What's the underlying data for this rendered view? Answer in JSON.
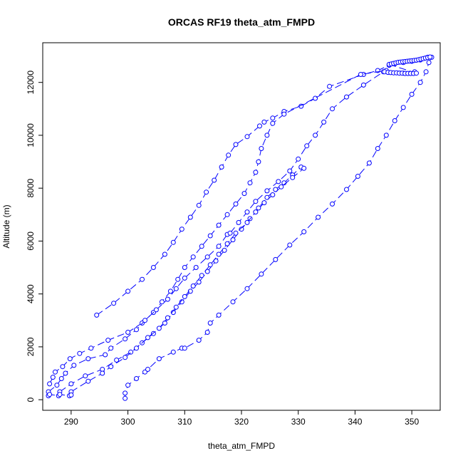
{
  "chart_data": {
    "type": "scatter",
    "title": "ORCAS RF19 theta_atm_FMPD",
    "xlabel": "theta_atm_FMPD",
    "ylabel": "Altitude (m)",
    "xlim": [
      285,
      355
    ],
    "ylim": [
      -400,
      13500
    ],
    "xticks": [
      290,
      300,
      310,
      320,
      330,
      340,
      350
    ],
    "yticks": [
      0,
      2000,
      4000,
      6000,
      8000,
      10000,
      12000
    ],
    "grid": false,
    "legend": "none",
    "color": "#0000ff",
    "line_style": "dashed",
    "marker": "open-circle",
    "series": [
      {
        "values": [
          [
            294.5,
            3200
          ],
          [
            297.5,
            3650
          ],
          [
            300.0,
            4100
          ],
          [
            302.5,
            4550
          ],
          [
            304.5,
            5000
          ],
          [
            306.5,
            5500
          ],
          [
            308.0,
            5950
          ],
          [
            309.5,
            6450
          ],
          [
            311.0,
            6900
          ],
          [
            312.5,
            7350
          ],
          [
            313.8,
            7850
          ],
          [
            315.2,
            8300
          ],
          [
            316.5,
            8800
          ],
          [
            317.7,
            9250
          ],
          [
            319.0,
            9650
          ],
          [
            321.0,
            9950
          ],
          [
            323.2,
            10350
          ],
          [
            324.0,
            10500
          ],
          [
            325.5,
            10650
          ],
          [
            327.5,
            10900
          ],
          [
            330.5,
            11100
          ],
          [
            333.0,
            11400
          ],
          [
            335.5,
            11850
          ],
          [
            341.5,
            12300
          ],
          [
            344.0,
            12450
          ],
          [
            346.0,
            12650
          ],
          [
            347.0,
            12700
          ],
          [
            348.5,
            12750
          ],
          [
            350.0,
            12800
          ],
          [
            351.5,
            12850
          ],
          [
            352.8,
            12950
          ]
        ]
      },
      {
        "values": [
          [
            286.2,
            600
          ],
          [
            286.8,
            850
          ],
          [
            287.2,
            1050
          ],
          [
            288.5,
            1250
          ],
          [
            289.8,
            1550
          ],
          [
            291.5,
            1750
          ],
          [
            293.5,
            1950
          ],
          [
            296.5,
            2250
          ],
          [
            300.0,
            2550
          ],
          [
            302.5,
            2900
          ],
          [
            304.5,
            3300
          ],
          [
            306.0,
            3700
          ],
          [
            307.5,
            4100
          ],
          [
            308.8,
            4550
          ],
          [
            310.0,
            5000
          ],
          [
            311.5,
            5400
          ],
          [
            313.0,
            5800
          ],
          [
            314.5,
            6200
          ],
          [
            316.0,
            6600
          ],
          [
            317.5,
            7000
          ],
          [
            319.0,
            7400
          ],
          [
            320.5,
            7800
          ],
          [
            321.5,
            8200
          ],
          [
            322.5,
            8600
          ],
          [
            323.0,
            9000
          ],
          [
            323.5,
            9500
          ],
          [
            324.5,
            10000
          ],
          [
            325.5,
            10450
          ],
          [
            327.5,
            10800
          ],
          [
            341.0,
            12300
          ],
          [
            345.5,
            12450
          ],
          [
            350.5,
            12400
          ]
        ]
      },
      {
        "values": [
          [
            286.0,
            300
          ],
          [
            287.5,
            550
          ],
          [
            288.3,
            800
          ],
          [
            289.0,
            1000
          ],
          [
            290.5,
            1300
          ],
          [
            293.0,
            1550
          ],
          [
            296.0,
            1700
          ],
          [
            297.0,
            1950
          ],
          [
            299.5,
            2300
          ],
          [
            301.5,
            2650
          ],
          [
            303.0,
            3000
          ],
          [
            305.0,
            3400
          ],
          [
            307.0,
            3800
          ],
          [
            308.5,
            4200
          ],
          [
            310.0,
            4600
          ],
          [
            312.0,
            5000
          ],
          [
            314.0,
            5400
          ],
          [
            316.0,
            5800
          ],
          [
            317.5,
            6250
          ],
          [
            318.0,
            6300
          ],
          [
            319.5,
            6700
          ],
          [
            321.0,
            7100
          ],
          [
            322.5,
            7500
          ],
          [
            324.5,
            7900
          ],
          [
            326.5,
            8250
          ],
          [
            328.5,
            8650
          ],
          [
            330.0,
            9100
          ],
          [
            331.5,
            9600
          ],
          [
            333.0,
            10000
          ],
          [
            334.5,
            10500
          ],
          [
            336.0,
            11000
          ],
          [
            338.5,
            11450
          ],
          [
            341.5,
            11900
          ],
          [
            345.0,
            12400
          ],
          [
            348.5,
            12350
          ]
        ]
      },
      {
        "values": [
          [
            288.0,
            300
          ],
          [
            290.0,
            600
          ],
          [
            292.5,
            900
          ],
          [
            295.5,
            1150
          ],
          [
            298.0,
            1500
          ],
          [
            300.5,
            1800
          ],
          [
            302.5,
            2150
          ],
          [
            304.5,
            2500
          ],
          [
            306.5,
            2900
          ],
          [
            308.0,
            3300
          ],
          [
            309.5,
            3700
          ],
          [
            311.0,
            4100
          ],
          [
            312.5,
            4450
          ],
          [
            314.0,
            4850
          ],
          [
            315.5,
            5250
          ],
          [
            317.0,
            5650
          ],
          [
            318.5,
            6050
          ],
          [
            320.0,
            6450
          ],
          [
            321.5,
            6850
          ],
          [
            323.0,
            7250
          ],
          [
            324.5,
            7650
          ],
          [
            326.0,
            7950
          ],
          [
            327.5,
            8200
          ],
          [
            329.0,
            8500
          ],
          [
            330.5,
            8800
          ]
        ]
      },
      {
        "values": [
          [
            290.0,
            300
          ],
          [
            293.0,
            700
          ],
          [
            295.5,
            1000
          ],
          [
            297.0,
            1250
          ],
          [
            299.5,
            1600
          ],
          [
            301.5,
            1950
          ],
          [
            303.5,
            2350
          ],
          [
            305.5,
            2700
          ],
          [
            307.0,
            3100
          ],
          [
            308.5,
            3500
          ],
          [
            310.0,
            3900
          ],
          [
            311.5,
            4300
          ],
          [
            313.0,
            4700
          ],
          [
            314.5,
            5100
          ],
          [
            316.0,
            5500
          ],
          [
            317.5,
            5900
          ],
          [
            319.0,
            6300
          ],
          [
            321.0,
            6700
          ],
          [
            322.5,
            7100
          ],
          [
            324.0,
            7450
          ],
          [
            325.5,
            7750
          ],
          [
            327.0,
            8050
          ],
          [
            329.0,
            8400
          ],
          [
            331.0,
            8750
          ]
        ]
      },
      {
        "values": [
          [
            299.5,
            50
          ],
          [
            299.5,
            250
          ],
          [
            300.0,
            550
          ],
          [
            301.5,
            800
          ],
          [
            303.0,
            1050
          ],
          [
            303.5,
            1150
          ],
          [
            305.5,
            1550
          ],
          [
            308.0,
            1800
          ],
          [
            309.5,
            1950
          ],
          [
            310.0,
            1950
          ],
          [
            312.5,
            2250
          ],
          [
            314.0,
            2550
          ],
          [
            314.5,
            2900
          ],
          [
            316.0,
            3200
          ],
          [
            318.5,
            3700
          ],
          [
            321.0,
            4200
          ],
          [
            323.5,
            4750
          ],
          [
            326.0,
            5300
          ],
          [
            328.5,
            5850
          ],
          [
            331.0,
            6350
          ],
          [
            333.5,
            6900
          ],
          [
            336.0,
            7400
          ],
          [
            338.5,
            7950
          ],
          [
            340.5,
            8450
          ],
          [
            342.5,
            8950
          ],
          [
            344.0,
            9500
          ],
          [
            345.5,
            10000
          ],
          [
            347.0,
            10550
          ],
          [
            348.5,
            11050
          ],
          [
            350.0,
            11550
          ],
          [
            351.5,
            12000
          ],
          [
            352.5,
            12400
          ],
          [
            353.0,
            12750
          ],
          [
            353.5,
            12950
          ]
        ]
      },
      {
        "values": [
          [
            286.0,
            150
          ],
          [
            286.2,
            200
          ],
          [
            287.8,
            150
          ],
          [
            288.0,
            200
          ],
          [
            289.7,
            150
          ],
          [
            290.0,
            180
          ]
        ]
      },
      {
        "values": [
          [
            345.2,
            12400
          ],
          [
            345.8,
            12380
          ],
          [
            346.3,
            12370
          ],
          [
            346.8,
            12360
          ],
          [
            347.3,
            12360
          ],
          [
            347.8,
            12350
          ],
          [
            348.3,
            12350
          ],
          [
            348.8,
            12340
          ],
          [
            349.3,
            12340
          ],
          [
            349.8,
            12340
          ],
          [
            350.3,
            12340
          ],
          [
            350.8,
            12350
          ],
          [
            346.0,
            12680
          ],
          [
            346.4,
            12700
          ],
          [
            346.8,
            12720
          ],
          [
            347.2,
            12740
          ],
          [
            347.6,
            12760
          ],
          [
            348.0,
            12770
          ],
          [
            348.4,
            12780
          ],
          [
            348.8,
            12790
          ],
          [
            349.2,
            12800
          ],
          [
            349.6,
            12810
          ],
          [
            350.0,
            12820
          ],
          [
            350.4,
            12830
          ],
          [
            350.8,
            12840
          ],
          [
            351.2,
            12860
          ],
          [
            351.6,
            12880
          ],
          [
            352.0,
            12900
          ],
          [
            352.4,
            12920
          ],
          [
            352.8,
            12940
          ],
          [
            353.2,
            12960
          ]
        ]
      }
    ]
  }
}
